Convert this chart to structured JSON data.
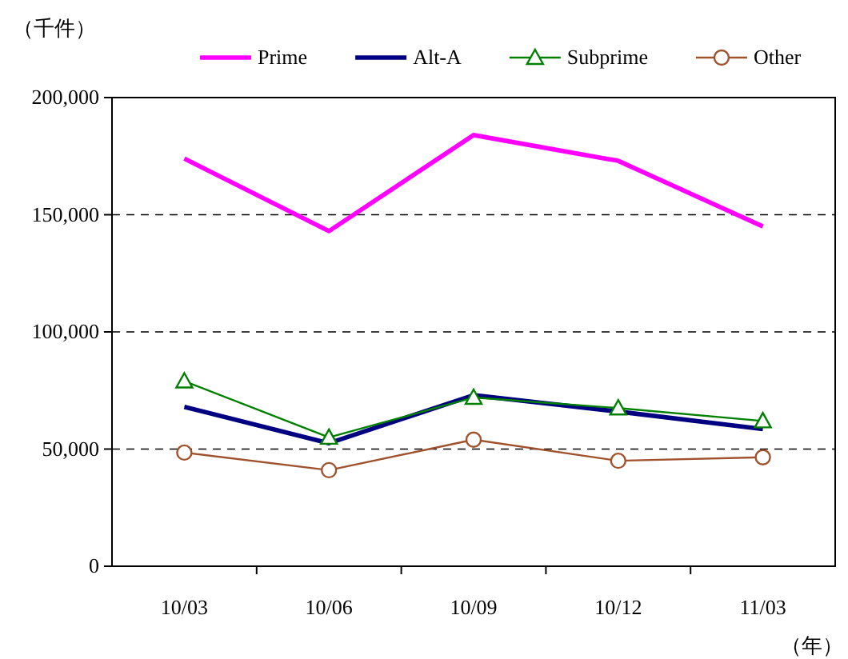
{
  "chart_data": {
    "type": "line",
    "ylabel": "（千件）",
    "xlabel": "（年）",
    "categories": [
      "10/03",
      "10/06",
      "10/09",
      "10/12",
      "11/03"
    ],
    "series": [
      {
        "name": "Prime",
        "color": "#ff00ff",
        "marker": "none",
        "values": [
          174000,
          143000,
          184000,
          173000,
          145000
        ]
      },
      {
        "name": "Alt-A",
        "color": "#000080",
        "marker": "none",
        "values": [
          68000,
          52500,
          73000,
          66000,
          58500
        ]
      },
      {
        "name": "Subprime",
        "color": "#008000",
        "marker": "triangle",
        "values": [
          79000,
          55000,
          72000,
          67500,
          62000
        ]
      },
      {
        "name": "Other",
        "color": "#a0522d",
        "marker": "circle",
        "values": [
          48500,
          41000,
          54000,
          45000,
          46500
        ]
      }
    ],
    "ylim": [
      0,
      200000
    ],
    "yticks": [
      {
        "value": 0,
        "label": "0"
      },
      {
        "value": 50000,
        "label": "50,000"
      },
      {
        "value": 100000,
        "label": "100,000"
      },
      {
        "value": 150000,
        "label": "150,000"
      },
      {
        "value": 200000,
        "label": "200,000"
      }
    ],
    "grid": "y",
    "legend": "top",
    "line_style": "solid"
  }
}
